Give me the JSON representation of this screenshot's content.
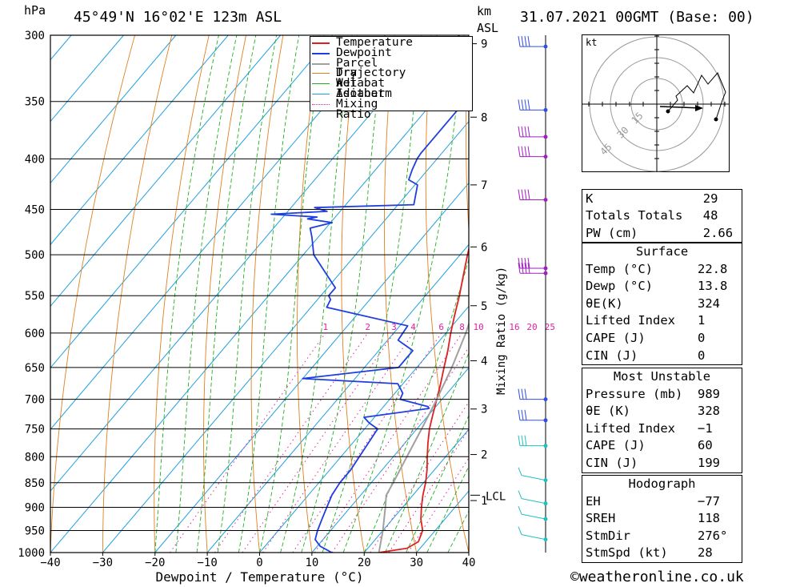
{
  "header": {
    "pressure_unit": "hPa",
    "location": "45°49'N  16°02'E  123m  ASL",
    "height_unit": "km",
    "height_unit_2": "ASL",
    "datetime": "31.07.2021  00GMT  (Base: 00)"
  },
  "footer": "©weatheronline.co.uk",
  "colors": {
    "temperature": "#e02020",
    "dewpoint": "#1e3ee0",
    "parcel": "#a0a0a0",
    "dry_adiabat": "#e08020",
    "wet_adiabat": "#20b020",
    "isotherm": "#20a0e0",
    "mixing_ratio": "#e020a0"
  },
  "chart_data": {
    "type": "line",
    "xlabel": "Dewpoint  /  Temperature  (°C)",
    "ylabel": "hPa",
    "xlim": [
      -40,
      40
    ],
    "ylim": [
      1000,
      300
    ],
    "x_ticks": [
      "−40",
      "−30",
      "−20",
      "−10",
      "0",
      "10",
      "20",
      "30",
      "40"
    ],
    "pressure_ticks": [
      "300",
      "350",
      "400",
      "450",
      "500",
      "550",
      "600",
      "650",
      "700",
      "750",
      "800",
      "850",
      "900",
      "950",
      "1000"
    ],
    "height_ticks_km": [
      "9",
      "8",
      "7",
      "6",
      "5",
      "4",
      "3",
      "2",
      "1"
    ],
    "lcl_label": "LCL",
    "lcl_pressure": 875,
    "mixing_ratio_axis_label": "Mixing Ratio (g/kg)",
    "mixing_ratio_labels": [
      "1",
      "2",
      "3",
      "4",
      "6",
      "8",
      "10",
      "16",
      "20",
      "25"
    ],
    "legend": [
      "Temperature",
      "Dewpoint",
      "Parcel Trajectory",
      "Dry Adiabat",
      "Wet Adiabat",
      "Isotherm",
      "Mixing Ratio"
    ],
    "legend_position": "top-right",
    "series": [
      {
        "name": "Temperature",
        "pressure": [
          1000,
          990,
          975,
          950,
          925,
          900,
          875,
          850,
          825,
          800,
          775,
          750,
          725,
          700,
          675,
          650,
          625,
          600,
          575,
          550,
          525,
          500,
          475,
          450,
          425,
          400,
          375,
          350,
          325,
          310,
          300
        ],
        "values": [
          22.8,
          27.5,
          28.6,
          27.6,
          25.4,
          23.6,
          21.9,
          20.4,
          18.6,
          16.5,
          14.4,
          12.4,
          10.7,
          9.0,
          7.2,
          5.2,
          3.2,
          0.9,
          -1.3,
          -3.5,
          -6.0,
          -8.6,
          -11.2,
          -14.0,
          -16.8,
          -19.8,
          -23.5,
          -27.8,
          -32.5,
          -35.5,
          -37.3
        ]
      },
      {
        "name": "Dewpoint",
        "pressure": [
          1000,
          985,
          970,
          950,
          925,
          900,
          875,
          850,
          825,
          800,
          775,
          750,
          740,
          730,
          715,
          712,
          700,
          690,
          675,
          667,
          650,
          625,
          610,
          602,
          590,
          565,
          555,
          550,
          540,
          525,
          500,
          480,
          470,
          464,
          460,
          458,
          455,
          452,
          448,
          445,
          425,
          420,
          410,
          400,
          395,
          375,
          350,
          330,
          320,
          311,
          305,
          300
        ],
        "values": [
          13.8,
          10.5,
          8.5,
          7.5,
          6.5,
          5.5,
          4.5,
          4.0,
          4.0,
          3.5,
          3.0,
          2.5,
          0.0,
          -2.0,
          9.0,
          8.5,
          2.0,
          1.5,
          -1.0,
          -20.0,
          -3.5,
          -3.5,
          -8.0,
          -8.2,
          -8.5,
          -27.0,
          -27.5,
          -28.5,
          -28.5,
          -32.0,
          -38.0,
          -41.2,
          -43.0,
          -39.7,
          -45.0,
          -43.5,
          -52.7,
          -42.5,
          -45.5,
          -27.0,
          -29.5,
          -32.0,
          -33.0,
          -33.8,
          -34.0,
          -34.0,
          -34.0,
          -36.5,
          -42.0,
          -45.0,
          -45.8,
          -45.8
        ]
      },
      {
        "name": "Parcel Trajectory",
        "pressure": [
          1000,
          950,
          900,
          875,
          850,
          800,
          750,
          700,
          650,
          600,
          550,
          500,
          450,
          400,
          350,
          300
        ],
        "values": [
          22.8,
          20.0,
          16.7,
          14.9,
          14.2,
          12.6,
          10.9,
          9.0,
          6.7,
          3.8,
          0.1,
          -4.5,
          -10.3,
          -17.4,
          -26.6,
          -39.1
        ]
      }
    ]
  },
  "hodograph": {
    "unit_label": "kt",
    "ring_labels": [
      "15",
      "30",
      "45"
    ]
  },
  "indices": {
    "k_label": "K",
    "k_value": "29",
    "tt_label": "Totals Totals",
    "tt_value": "48",
    "pw_label": "PW (cm)",
    "pw_value": "2.66"
  },
  "surface": {
    "title": "Surface",
    "temp_label": "Temp (°C)",
    "temp_value": "22.8",
    "dewp_label": "Dewp (°C)",
    "dewp_value": "13.8",
    "theta_label": "θE(K)",
    "theta_value": "324",
    "li_label": "Lifted Index",
    "li_value": "1",
    "cape_label": "CAPE (J)",
    "cape_value": "0",
    "cin_label": "CIN (J)",
    "cin_value": "0"
  },
  "most_unstable": {
    "title": "Most Unstable",
    "pressure_label": "Pressure (mb)",
    "pressure_value": "989",
    "theta_label": "θE (K)",
    "theta_value": "328",
    "li_label": "Lifted Index",
    "li_value": "−1",
    "cape_label": "CAPE (J)",
    "cape_value": "60",
    "cin_label": "CIN (J)",
    "cin_value": "199"
  },
  "hodograph_params": {
    "title": "Hodograph",
    "eh_label": "EH",
    "eh_value": "−77",
    "sreh_label": "SREH",
    "sreh_value": "118",
    "stmdir_label": "StmDir",
    "stmdir_value": "276°",
    "stmspd_label": "StmSpd (kt)",
    "stmspd_value": "28"
  }
}
